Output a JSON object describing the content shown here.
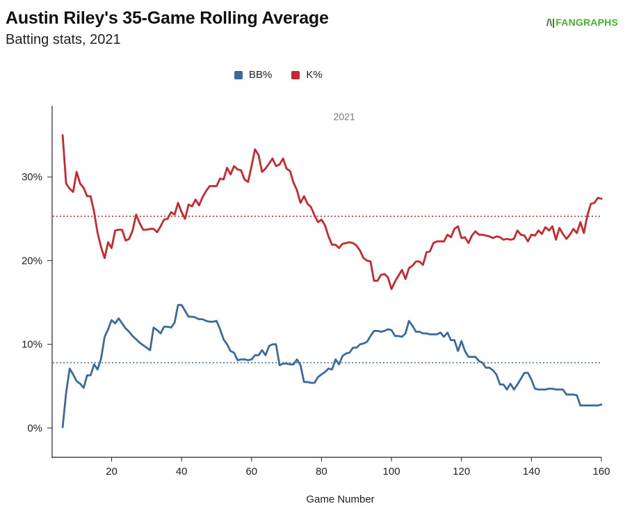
{
  "header": {
    "title": "Austin Riley's 35-Game Rolling Average",
    "subtitle": "Batting stats, 2021",
    "logo_text": "FANGRAPHS",
    "logo_mark": "/\\|"
  },
  "chart_data": {
    "type": "line",
    "annotation": "2021",
    "xlabel": "Game Number",
    "ylabel": "",
    "xlim": [
      3,
      161
    ],
    "ylim": [
      -3.5,
      38.5
    ],
    "x_ticks": [
      20,
      40,
      60,
      80,
      100,
      120,
      140,
      160
    ],
    "x_tick_labels": [
      "20",
      "40",
      "60",
      "80",
      "100",
      "120",
      "140",
      "160"
    ],
    "y_ticks": [
      0,
      10,
      20,
      30
    ],
    "y_tick_labels": [
      "0%",
      "10%",
      "20%",
      "30%"
    ],
    "grid": false,
    "legend_position": "top-center",
    "series": [
      {
        "name": "BB%",
        "color": "#3a6a9e",
        "average": 7.8,
        "points": [
          [
            6,
            0.1
          ],
          [
            7,
            4.2
          ],
          [
            8,
            7.1
          ],
          [
            9,
            6.4
          ],
          [
            10,
            5.6
          ],
          [
            11,
            5.3
          ],
          [
            12,
            4.8
          ],
          [
            13,
            6.3
          ],
          [
            14,
            6.3
          ],
          [
            15,
            7.6
          ],
          [
            16,
            7.0
          ],
          [
            17,
            8.3
          ],
          [
            18,
            10.9
          ],
          [
            19,
            11.8
          ],
          [
            20,
            12.9
          ],
          [
            21,
            12.5
          ],
          [
            22,
            13.1
          ],
          [
            23,
            12.5
          ],
          [
            24,
            11.9
          ],
          [
            25,
            11.5
          ],
          [
            26,
            11.0
          ],
          [
            27,
            10.6
          ],
          [
            28,
            10.2
          ],
          [
            29,
            9.9
          ],
          [
            30,
            9.6
          ],
          [
            31,
            9.3
          ],
          [
            32,
            12.0
          ],
          [
            33,
            11.7
          ],
          [
            34,
            11.3
          ],
          [
            35,
            12.1
          ],
          [
            36,
            12.1
          ],
          [
            37,
            12.0
          ],
          [
            38,
            12.6
          ],
          [
            39,
            14.7
          ],
          [
            40,
            14.7
          ],
          [
            41,
            14.0
          ],
          [
            42,
            13.3
          ],
          [
            43,
            13.3
          ],
          [
            44,
            13.2
          ],
          [
            45,
            13.0
          ],
          [
            46,
            13.0
          ],
          [
            47,
            12.8
          ],
          [
            48,
            12.7
          ],
          [
            49,
            12.7
          ],
          [
            50,
            12.8
          ],
          [
            51,
            11.8
          ],
          [
            52,
            10.6
          ],
          [
            53,
            10.0
          ],
          [
            54,
            9.2
          ],
          [
            55,
            9.0
          ],
          [
            56,
            8.1
          ],
          [
            57,
            8.2
          ],
          [
            58,
            8.2
          ],
          [
            59,
            8.1
          ],
          [
            60,
            8.2
          ],
          [
            61,
            8.7
          ],
          [
            62,
            8.7
          ],
          [
            63,
            9.3
          ],
          [
            64,
            8.7
          ],
          [
            65,
            9.8
          ],
          [
            66,
            10.0
          ],
          [
            67,
            10.0
          ],
          [
            68,
            7.5
          ],
          [
            69,
            7.7
          ],
          [
            70,
            7.7
          ],
          [
            71,
            7.6
          ],
          [
            72,
            7.6
          ],
          [
            73,
            8.2
          ],
          [
            74,
            7.5
          ],
          [
            75,
            5.5
          ],
          [
            76,
            5.5
          ],
          [
            77,
            5.4
          ],
          [
            78,
            5.4
          ],
          [
            79,
            6.1
          ],
          [
            80,
            6.4
          ],
          [
            81,
            6.7
          ],
          [
            82,
            7.1
          ],
          [
            83,
            7.0
          ],
          [
            84,
            8.2
          ],
          [
            85,
            7.6
          ],
          [
            86,
            8.6
          ],
          [
            87,
            8.9
          ],
          [
            88,
            9.0
          ],
          [
            89,
            9.6
          ],
          [
            90,
            9.6
          ],
          [
            91,
            10.0
          ],
          [
            92,
            10.1
          ],
          [
            93,
            10.3
          ],
          [
            94,
            11.0
          ],
          [
            95,
            11.6
          ],
          [
            96,
            11.6
          ],
          [
            97,
            11.5
          ],
          [
            98,
            11.6
          ],
          [
            99,
            11.8
          ],
          [
            100,
            11.7
          ],
          [
            101,
            11.0
          ],
          [
            102,
            11.0
          ],
          [
            103,
            10.9
          ],
          [
            104,
            11.3
          ],
          [
            105,
            12.8
          ],
          [
            106,
            12.2
          ],
          [
            107,
            11.5
          ],
          [
            108,
            11.5
          ],
          [
            109,
            11.3
          ],
          [
            110,
            11.3
          ],
          [
            111,
            11.2
          ],
          [
            112,
            11.2
          ],
          [
            113,
            11.2
          ],
          [
            114,
            11.4
          ],
          [
            115,
            10.9
          ],
          [
            116,
            11.4
          ],
          [
            117,
            10.5
          ],
          [
            118,
            10.5
          ],
          [
            119,
            9.2
          ],
          [
            120,
            10.4
          ],
          [
            121,
            9.2
          ],
          [
            122,
            8.5
          ],
          [
            123,
            8.5
          ],
          [
            124,
            8.5
          ],
          [
            125,
            8.0
          ],
          [
            126,
            7.8
          ],
          [
            127,
            7.2
          ],
          [
            128,
            7.2
          ],
          [
            129,
            6.9
          ],
          [
            130,
            6.4
          ],
          [
            131,
            5.2
          ],
          [
            132,
            5.2
          ],
          [
            133,
            4.6
          ],
          [
            134,
            5.3
          ],
          [
            135,
            4.6
          ],
          [
            136,
            5.2
          ],
          [
            137,
            5.9
          ],
          [
            138,
            6.6
          ],
          [
            139,
            6.6
          ],
          [
            140,
            5.8
          ],
          [
            141,
            4.7
          ],
          [
            142,
            4.6
          ],
          [
            143,
            4.6
          ],
          [
            144,
            4.6
          ],
          [
            145,
            4.7
          ],
          [
            146,
            4.7
          ],
          [
            147,
            4.6
          ],
          [
            148,
            4.6
          ],
          [
            149,
            4.6
          ],
          [
            150,
            4.0
          ],
          [
            151,
            4.0
          ],
          [
            152,
            4.0
          ],
          [
            153,
            3.9
          ],
          [
            154,
            2.7
          ],
          [
            155,
            2.7
          ],
          [
            156,
            2.7
          ],
          [
            157,
            2.7
          ],
          [
            158,
            2.7
          ],
          [
            159,
            2.7
          ],
          [
            160,
            2.8
          ]
        ]
      },
      {
        "name": "K%",
        "color": "#c8272d",
        "average": 25.3,
        "points": [
          [
            6,
            35.0
          ],
          [
            7,
            29.2
          ],
          [
            8,
            28.6
          ],
          [
            9,
            28.2
          ],
          [
            10,
            30.6
          ],
          [
            11,
            29.2
          ],
          [
            12,
            28.7
          ],
          [
            13,
            27.7
          ],
          [
            14,
            27.7
          ],
          [
            15,
            25.8
          ],
          [
            16,
            23.3
          ],
          [
            17,
            21.6
          ],
          [
            18,
            20.3
          ],
          [
            19,
            22.2
          ],
          [
            20,
            21.5
          ],
          [
            21,
            23.6
          ],
          [
            22,
            23.7
          ],
          [
            23,
            23.7
          ],
          [
            24,
            22.4
          ],
          [
            25,
            22.6
          ],
          [
            26,
            23.6
          ],
          [
            27,
            25.5
          ],
          [
            28,
            24.5
          ],
          [
            29,
            23.7
          ],
          [
            30,
            23.7
          ],
          [
            31,
            23.8
          ],
          [
            32,
            23.8
          ],
          [
            33,
            23.4
          ],
          [
            34,
            24.1
          ],
          [
            35,
            24.9
          ],
          [
            36,
            25.0
          ],
          [
            37,
            25.8
          ],
          [
            38,
            25.5
          ],
          [
            39,
            26.9
          ],
          [
            40,
            25.8
          ],
          [
            41,
            25.0
          ],
          [
            42,
            26.7
          ],
          [
            43,
            26.5
          ],
          [
            44,
            27.3
          ],
          [
            45,
            26.6
          ],
          [
            46,
            27.6
          ],
          [
            47,
            28.3
          ],
          [
            48,
            28.9
          ],
          [
            49,
            28.9
          ],
          [
            50,
            28.9
          ],
          [
            51,
            29.8
          ],
          [
            52,
            29.7
          ],
          [
            53,
            31.1
          ],
          [
            54,
            30.3
          ],
          [
            55,
            31.3
          ],
          [
            56,
            30.9
          ],
          [
            57,
            30.8
          ],
          [
            58,
            29.7
          ],
          [
            59,
            29.4
          ],
          [
            60,
            31.3
          ],
          [
            61,
            33.3
          ],
          [
            62,
            32.6
          ],
          [
            63,
            30.6
          ],
          [
            64,
            31.0
          ],
          [
            65,
            31.6
          ],
          [
            66,
            32.2
          ],
          [
            67,
            31.3
          ],
          [
            68,
            31.5
          ],
          [
            69,
            32.2
          ],
          [
            70,
            31.0
          ],
          [
            71,
            30.7
          ],
          [
            72,
            29.3
          ],
          [
            73,
            28.4
          ],
          [
            74,
            26.9
          ],
          [
            75,
            27.7
          ],
          [
            76,
            26.8
          ],
          [
            77,
            26.4
          ],
          [
            78,
            25.4
          ],
          [
            79,
            24.6
          ],
          [
            80,
            24.9
          ],
          [
            81,
            24.2
          ],
          [
            82,
            22.9
          ],
          [
            83,
            21.9
          ],
          [
            84,
            21.9
          ],
          [
            85,
            21.5
          ],
          [
            86,
            22.0
          ],
          [
            87,
            22.1
          ],
          [
            88,
            22.2
          ],
          [
            89,
            22.1
          ],
          [
            90,
            21.8
          ],
          [
            91,
            21.2
          ],
          [
            92,
            20.3
          ],
          [
            93,
            20.0
          ],
          [
            94,
            19.9
          ],
          [
            95,
            17.6
          ],
          [
            96,
            17.6
          ],
          [
            97,
            18.3
          ],
          [
            98,
            18.4
          ],
          [
            99,
            18.0
          ],
          [
            100,
            16.6
          ],
          [
            101,
            17.5
          ],
          [
            102,
            18.2
          ],
          [
            103,
            18.9
          ],
          [
            104,
            17.8
          ],
          [
            105,
            19.1
          ],
          [
            106,
            19.4
          ],
          [
            107,
            19.9
          ],
          [
            108,
            19.9
          ],
          [
            109,
            19.5
          ],
          [
            110,
            21.0
          ],
          [
            111,
            21.1
          ],
          [
            112,
            22.1
          ],
          [
            113,
            22.3
          ],
          [
            114,
            22.3
          ],
          [
            115,
            22.3
          ],
          [
            116,
            23.1
          ],
          [
            117,
            22.8
          ],
          [
            118,
            23.8
          ],
          [
            119,
            24.1
          ],
          [
            120,
            22.7
          ],
          [
            121,
            22.8
          ],
          [
            122,
            22.1
          ],
          [
            123,
            23.0
          ],
          [
            124,
            23.5
          ],
          [
            125,
            23.1
          ],
          [
            126,
            23.1
          ],
          [
            127,
            23.0
          ],
          [
            128,
            22.9
          ],
          [
            129,
            22.7
          ],
          [
            130,
            22.9
          ],
          [
            131,
            22.8
          ],
          [
            132,
            22.5
          ],
          [
            133,
            22.6
          ],
          [
            134,
            22.5
          ],
          [
            135,
            22.6
          ],
          [
            136,
            23.6
          ],
          [
            137,
            23.1
          ],
          [
            138,
            23.0
          ],
          [
            139,
            22.3
          ],
          [
            140,
            23.1
          ],
          [
            141,
            23.0
          ],
          [
            142,
            23.6
          ],
          [
            143,
            23.2
          ],
          [
            144,
            24.0
          ],
          [
            145,
            23.6
          ],
          [
            146,
            24.1
          ],
          [
            147,
            22.5
          ],
          [
            148,
            23.9
          ],
          [
            149,
            23.2
          ],
          [
            150,
            22.6
          ],
          [
            151,
            23.1
          ],
          [
            152,
            23.8
          ],
          [
            153,
            23.3
          ],
          [
            154,
            24.6
          ],
          [
            155,
            23.3
          ],
          [
            156,
            25.4
          ],
          [
            157,
            26.8
          ],
          [
            158,
            26.9
          ],
          [
            159,
            27.5
          ],
          [
            160,
            27.4
          ]
        ]
      }
    ]
  }
}
